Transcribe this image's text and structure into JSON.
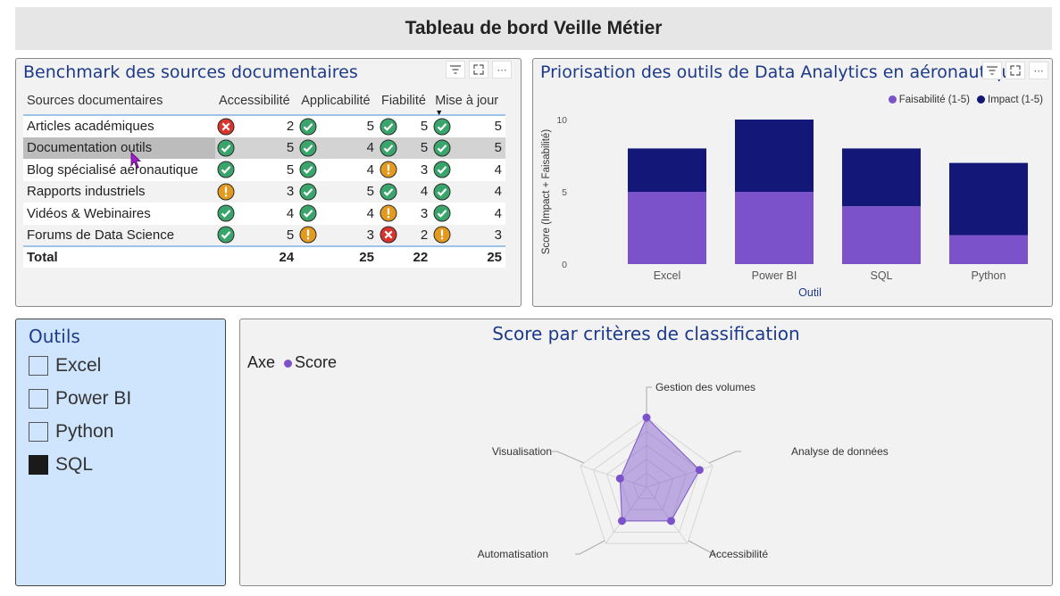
{
  "header": {
    "title": "Tableau de bord Veille Métier"
  },
  "benchmark": {
    "title": "Benchmark des sources documentaires",
    "columns": [
      "Sources documentaires",
      "Accessibilité",
      "Applicabilité",
      "Fiabilité",
      "Mise à jour"
    ],
    "rows": [
      {
        "name": "Articles académiques",
        "cells": [
          {
            "icon": "red-x-icon",
            "val": "2"
          },
          {
            "icon": "green-check-icon",
            "val": "5"
          },
          {
            "icon": "green-check-icon",
            "val": "5"
          },
          {
            "icon": "green-check-icon",
            "val": "5"
          }
        ]
      },
      {
        "name": "Documentation outils",
        "cells": [
          {
            "icon": "green-check-icon",
            "val": "5"
          },
          {
            "icon": "green-check-icon",
            "val": "4"
          },
          {
            "icon": "green-check-icon",
            "val": "5"
          },
          {
            "icon": "green-check-icon",
            "val": "5"
          }
        ]
      },
      {
        "name": "Blog spécialisé aéronautique",
        "cells": [
          {
            "icon": "green-check-icon",
            "val": "5"
          },
          {
            "icon": "green-check-icon",
            "val": "4"
          },
          {
            "icon": "orange-warning-icon",
            "val": "3"
          },
          {
            "icon": "green-check-icon",
            "val": "4"
          }
        ]
      },
      {
        "name": "Rapports industriels",
        "cells": [
          {
            "icon": "orange-warning-icon",
            "val": "3"
          },
          {
            "icon": "green-check-icon",
            "val": "5"
          },
          {
            "icon": "green-check-icon",
            "val": "4"
          },
          {
            "icon": "green-check-icon",
            "val": "4"
          }
        ]
      },
      {
        "name": "Vidéos & Webinaires",
        "cells": [
          {
            "icon": "green-check-icon",
            "val": "4"
          },
          {
            "icon": "green-check-icon",
            "val": "4"
          },
          {
            "icon": "orange-warning-icon",
            "val": "3"
          },
          {
            "icon": "green-check-icon",
            "val": "4"
          }
        ]
      },
      {
        "name": "Forums de Data Science",
        "cells": [
          {
            "icon": "green-check-icon",
            "val": "5"
          },
          {
            "icon": "orange-warning-icon",
            "val": "3"
          },
          {
            "icon": "red-x-icon",
            "val": "2"
          },
          {
            "icon": "orange-warning-icon",
            "val": "3"
          }
        ]
      }
    ],
    "total": {
      "label": "Total",
      "values": [
        "24",
        "25",
        "22",
        "25"
      ]
    },
    "toolbar": {
      "filter": "filter-icon",
      "focus": "focus-mode-icon",
      "more": "more-options-icon"
    }
  },
  "priorisation": {
    "title": "Priorisation des outils de Data Analytics en aéronautique",
    "legend": [
      "Faisabilité (1-5)",
      "Impact (1-5)"
    ]
  },
  "chart_data": [
    {
      "type": "bar",
      "title": "Priorisation des outils de Data Analytics en aéronautique",
      "categories": [
        "Excel",
        "Power BI",
        "SQL",
        "Python"
      ],
      "series": [
        {
          "name": "Faisabilité (1-5)",
          "values": [
            5,
            5,
            4,
            2
          ],
          "color": "#7b52c9"
        },
        {
          "name": "Impact (1-5)",
          "values": [
            3,
            5,
            4,
            5
          ],
          "color": "#131778"
        }
      ],
      "stacked": true,
      "xlabel": "Outil",
      "ylabel": "Score (Impact + Faisabilité)",
      "ylim": [
        0,
        10
      ],
      "yticks": [
        "0",
        "5",
        "10"
      ],
      "legend_position": "top-right"
    },
    {
      "type": "radar",
      "title": "Score par critères de classification",
      "axes": [
        "Gestion des volumes",
        "Analyse de données",
        "Accessibilité",
        "Automatisation",
        "Visualisation"
      ],
      "series": [
        {
          "name": "Score",
          "values": [
            5,
            4,
            3,
            3,
            2
          ],
          "color": "#7b52c9"
        }
      ],
      "rmax": 5,
      "legend_title": "Axe"
    }
  ],
  "slicer": {
    "title": "Outils",
    "items": [
      {
        "label": "Excel",
        "checked": false
      },
      {
        "label": "Power BI",
        "checked": false
      },
      {
        "label": "Python",
        "checked": false
      },
      {
        "label": "SQL",
        "checked": true
      }
    ]
  },
  "radar": {
    "title": "Score par critères de classification",
    "legend_title": "Axe",
    "legend_series": "Score"
  },
  "colors": {
    "accent_title": "#1d3a8a",
    "faisabilite": "#7b52c9",
    "impact": "#131778",
    "check": "#3aa56b",
    "warn": "#e39a1f",
    "error": "#d9332b"
  }
}
